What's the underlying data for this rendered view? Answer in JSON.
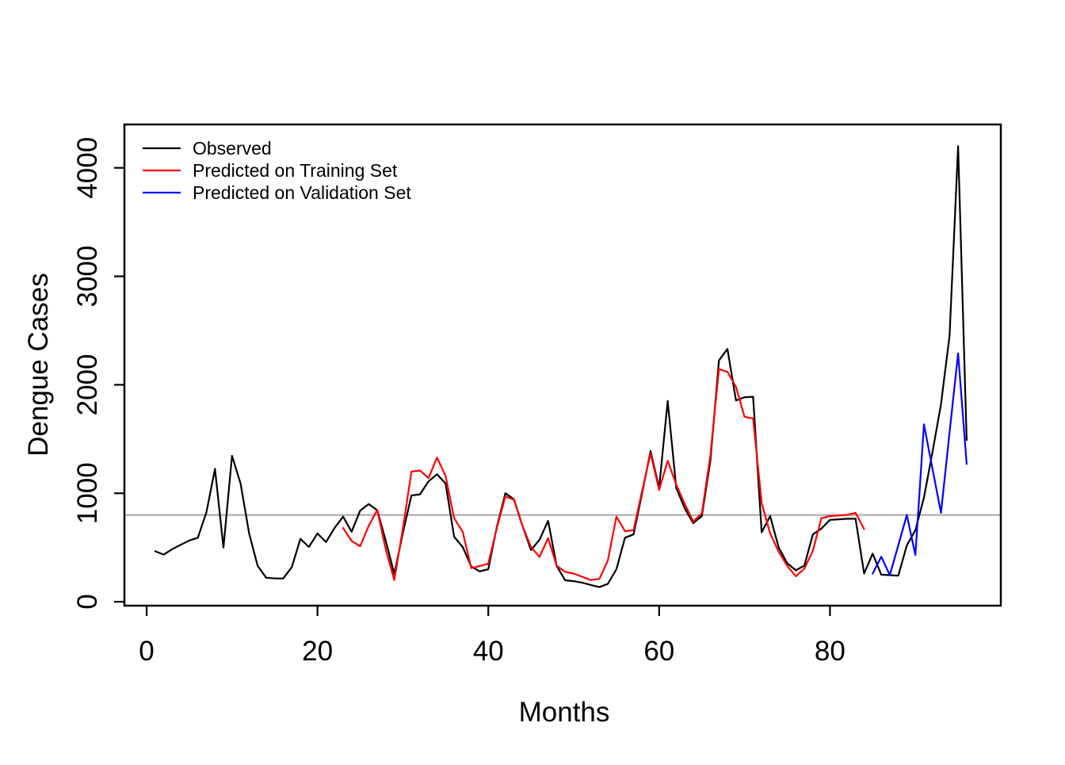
{
  "chart_data": {
    "type": "line",
    "title": "",
    "xlabel": "Months",
    "ylabel": "Dengue Cases",
    "x_ticks": [
      0,
      20,
      40,
      60,
      80
    ],
    "y_ticks": [
      0,
      1000,
      2000,
      3000,
      4000
    ],
    "xlim": [
      -2.6,
      100
    ],
    "ylim": [
      -36,
      4400
    ],
    "grid": false,
    "reference_line_y": 800,
    "reference_line_color": "#ADADAD",
    "legend": {
      "position": "top-left"
    },
    "series": [
      {
        "name": "Observed",
        "color": "#000000",
        "start_month": 1,
        "values": [
          465,
          435,
          485,
          525,
          565,
          590,
          825,
          1225,
          500,
          1345,
          1090,
          630,
          330,
          222,
          215,
          215,
          320,
          580,
          505,
          630,
          550,
          680,
          785,
          645,
          840,
          900,
          843,
          560,
          255,
          635,
          980,
          990,
          1110,
          1175,
          1090,
          600,
          505,
          325,
          280,
          300,
          690,
          1000,
          945,
          700,
          476,
          572,
          746,
          331,
          198,
          190,
          175,
          155,
          135,
          165,
          300,
          590,
          620,
          1000,
          1390,
          1050,
          1850,
          1050,
          860,
          725,
          790,
          1300,
          2225,
          2330,
          1855,
          1885,
          1890,
          640,
          790,
          500,
          355,
          290,
          333,
          620,
          675,
          755,
          760,
          765,
          765,
          260,
          444,
          250,
          245,
          240,
          520,
          660,
          960,
          1380,
          1820,
          2450,
          4200,
          1490
        ]
      },
      {
        "name": "Predicted on Training Set",
        "color": "#FF0000",
        "start_month": 23,
        "values": [
          680,
          560,
          512,
          700,
          845,
          480,
          200,
          675,
          1200,
          1210,
          1140,
          1330,
          1160,
          770,
          645,
          310,
          330,
          350,
          680,
          970,
          940,
          700,
          505,
          413,
          587,
          333,
          275,
          260,
          230,
          200,
          210,
          380,
          785,
          650,
          660,
          1020,
          1370,
          1030,
          1300,
          1080,
          900,
          740,
          814,
          1350,
          2145,
          2120,
          1980,
          1705,
          1690,
          911,
          630,
          460,
          330,
          235,
          305,
          470,
          770,
          790,
          795,
          800,
          820,
          670
        ]
      },
      {
        "name": "Predicted on Validation Set",
        "color": "#0000FF",
        "start_month": 85,
        "values": [
          260,
          415,
          246,
          520,
          800,
          430,
          1635,
          1225,
          820,
          1560,
          2290,
          1270
        ]
      }
    ]
  }
}
